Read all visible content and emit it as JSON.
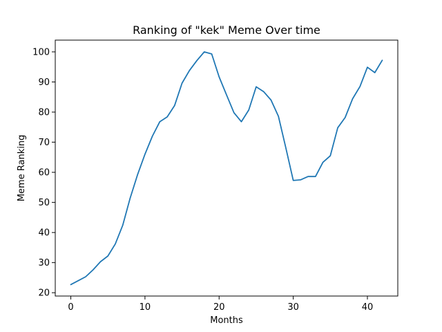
{
  "chart_data": {
    "type": "line",
    "title": "Ranking of \"kek\" Meme Over time",
    "xlabel": "Months",
    "ylabel": "Meme Ranking",
    "xlim": [
      -2.1,
      44.1
    ],
    "ylim": [
      18.9,
      103.9
    ],
    "xticks": [
      0,
      10,
      20,
      30,
      40
    ],
    "yticks": [
      20,
      30,
      40,
      50,
      60,
      70,
      80,
      90,
      100
    ],
    "grid": false,
    "series": [
      {
        "color": "#1f77b4",
        "x": [
          0,
          1,
          2,
          3,
          4,
          5,
          6,
          7,
          8,
          9,
          10,
          11,
          12,
          13,
          14,
          15,
          16,
          17,
          18,
          19,
          20,
          21,
          22,
          23,
          24,
          25,
          26,
          27,
          28,
          29,
          30,
          31,
          32,
          33,
          34,
          35,
          36,
          37,
          38,
          39,
          40,
          41,
          42
        ],
        "y": [
          22.7,
          24.0,
          25.3,
          27.6,
          30.3,
          32.2,
          36.2,
          42.4,
          51.4,
          59.2,
          66.0,
          72.0,
          76.8,
          78.4,
          82.2,
          89.6,
          93.8,
          97.1,
          100.0,
          99.3,
          91.7,
          85.7,
          79.8,
          76.8,
          80.7,
          88.4,
          86.8,
          84.0,
          78.6,
          68.1,
          57.3,
          57.5,
          58.6,
          58.6,
          63.3,
          65.5,
          74.8,
          78.2,
          84.4,
          88.5,
          94.9,
          93.1,
          97.2
        ]
      }
    ]
  }
}
